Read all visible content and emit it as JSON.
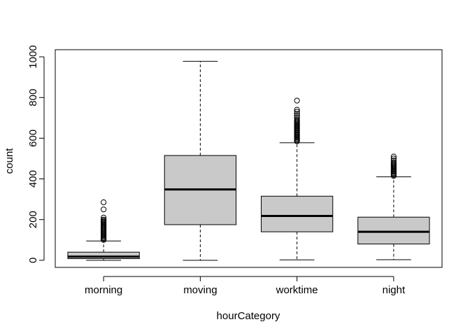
{
  "chart_data": {
    "type": "boxplot",
    "title": "",
    "xlabel": "hourCategory",
    "ylabel": "count",
    "ylim": [
      -35,
      1035
    ],
    "y_ticks": [
      0,
      200,
      400,
      600,
      800,
      1000
    ],
    "box_fill": "#c9c9c9",
    "categories": [
      "morning",
      "moving",
      "worktime",
      "night"
    ],
    "series": [
      {
        "category": "morning",
        "whisker_low": 0,
        "q1": 8,
        "median": 18,
        "q3": 40,
        "whisker_high": 95,
        "outliers": [
          100,
          105,
          110,
          115,
          120,
          125,
          130,
          135,
          140,
          145,
          150,
          155,
          160,
          165,
          170,
          175,
          180,
          185,
          190,
          195,
          200,
          210,
          250,
          285
        ]
      },
      {
        "category": "moving",
        "whisker_low": 0,
        "q1": 175,
        "median": 348,
        "q3": 515,
        "whisker_high": 978,
        "outliers": []
      },
      {
        "category": "worktime",
        "whisker_low": 2,
        "q1": 140,
        "median": 218,
        "q3": 315,
        "whisker_high": 578,
        "outliers": [
          585,
          590,
          595,
          600,
          605,
          610,
          615,
          620,
          625,
          630,
          635,
          640,
          645,
          650,
          655,
          660,
          665,
          670,
          675,
          680,
          685,
          690,
          700,
          710,
          720,
          730,
          740,
          785
        ]
      },
      {
        "category": "night",
        "whisker_low": 3,
        "q1": 80,
        "median": 140,
        "q3": 212,
        "whisker_high": 410,
        "outliers": [
          415,
          420,
          425,
          430,
          435,
          440,
          445,
          450,
          455,
          460,
          465,
          470,
          475,
          480,
          490,
          500,
          510
        ]
      }
    ]
  }
}
